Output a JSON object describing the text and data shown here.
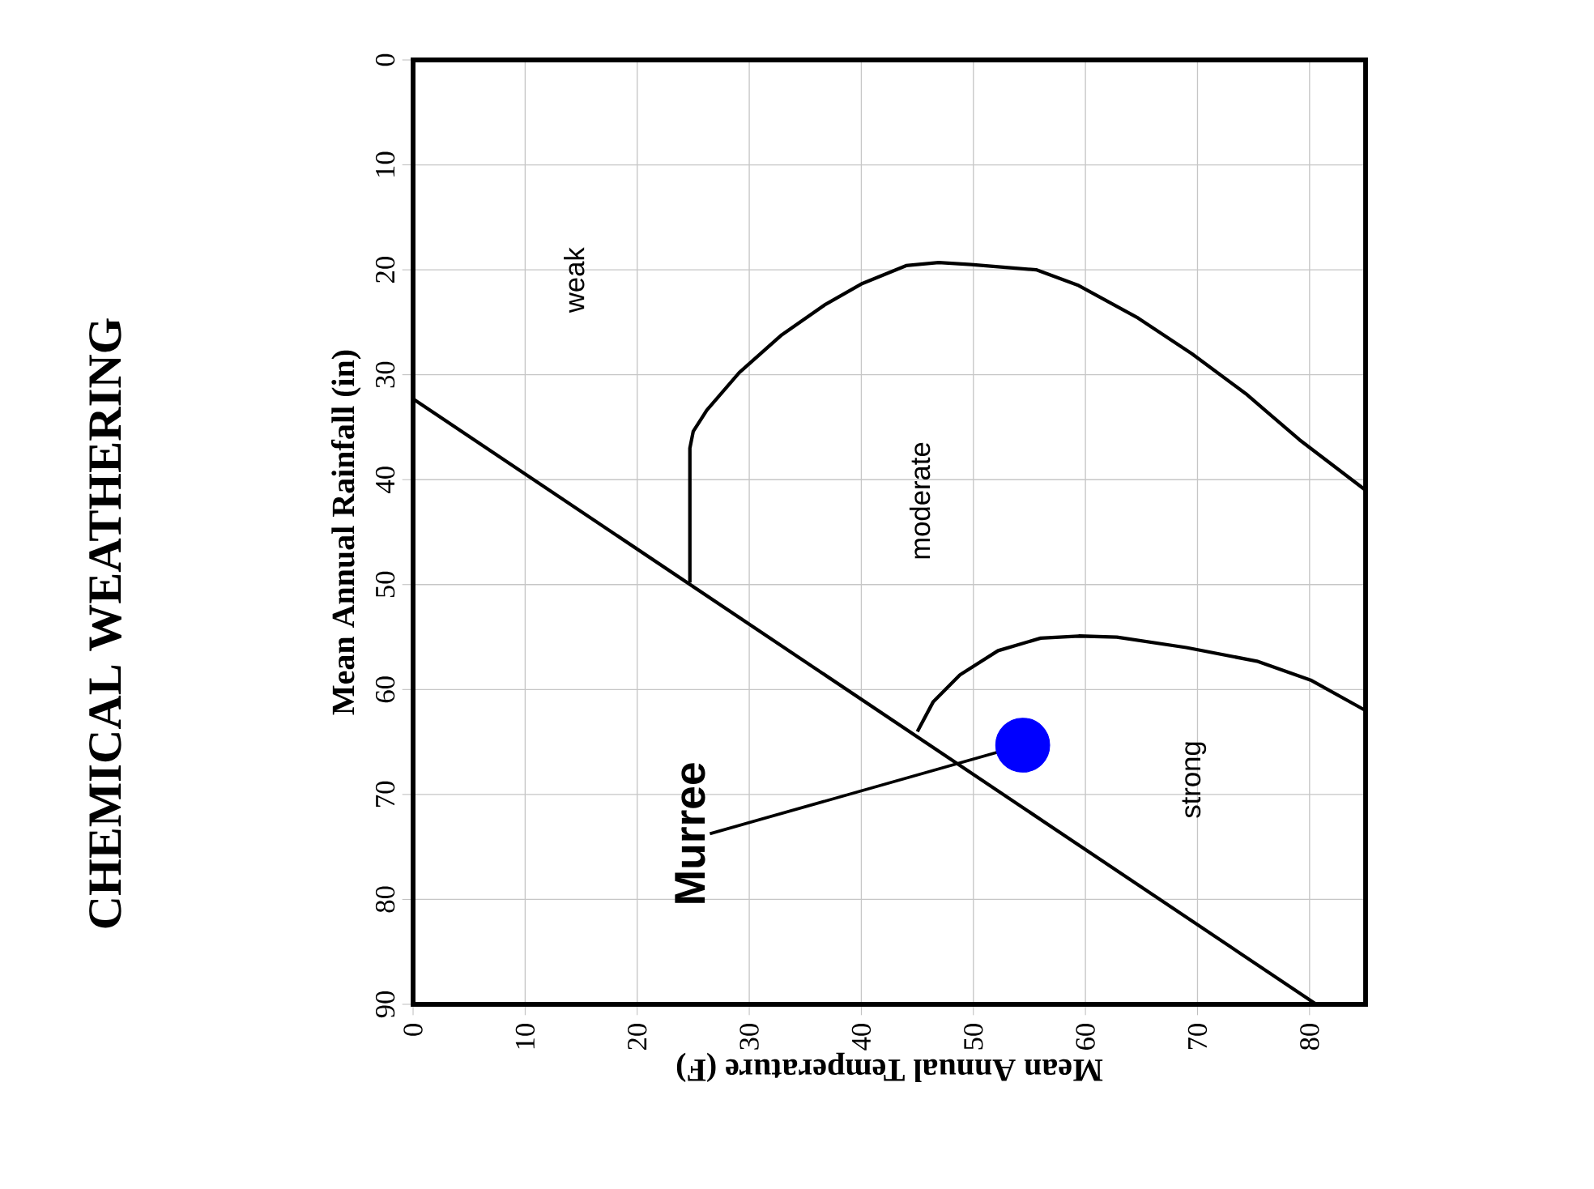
{
  "chart_data": {
    "type": "line",
    "title": "CHEMICAL WEATHERING",
    "xlabel": "Mean Annual Temperature (F)",
    "ylabel": "Mean Annual Rainfall (in)",
    "xlim": [
      0,
      85
    ],
    "xticks": [
      0,
      10,
      20,
      30,
      40,
      50,
      60,
      70,
      80
    ],
    "ylim": [
      90,
      0
    ],
    "yticks": [
      0,
      10,
      20,
      30,
      40,
      50,
      60,
      70,
      80,
      90
    ],
    "grid": true,
    "marker": "none",
    "series": [
      {
        "color": "#000000",
        "x": [
          0,
          80.6
        ],
        "values": [
          32.3,
          90
        ]
      },
      {
        "color": "#000000",
        "x": [
          24.7,
          24.7,
          25.0,
          26.2,
          29.1,
          32.9,
          36.8,
          40.1,
          44.0,
          46.9,
          49.8,
          55.6,
          59.4,
          64.7,
          69.5,
          74.3,
          79.1,
          85
        ],
        "values": [
          49.8,
          37.0,
          35.4,
          33.4,
          29.8,
          26.2,
          23.3,
          21.3,
          19.6,
          19.3,
          19.5,
          20.0,
          21.5,
          24.6,
          28.0,
          31.8,
          36.2,
          41
        ]
      },
      {
        "color": "#000000",
        "x": [
          45.0,
          46.4,
          48.8,
          52.2,
          56.0,
          59.4,
          62.8,
          69.0,
          75.3,
          80.1,
          85
        ],
        "values": [
          64.0,
          61.2,
          58.6,
          56.3,
          55.1,
          54.9,
          55.0,
          56.0,
          57.3,
          59.1,
          62
        ]
      },
      {
        "type": "scatter",
        "color": "#0000ff",
        "marker": "circle",
        "x": [
          54.4
        ],
        "values": [
          65.3
        ]
      }
    ],
    "annotations": [
      "weak",
      "moderate",
      "strong",
      {
        "text": "Murree",
        "x": 54.4,
        "y": 65.3
      }
    ]
  }
}
